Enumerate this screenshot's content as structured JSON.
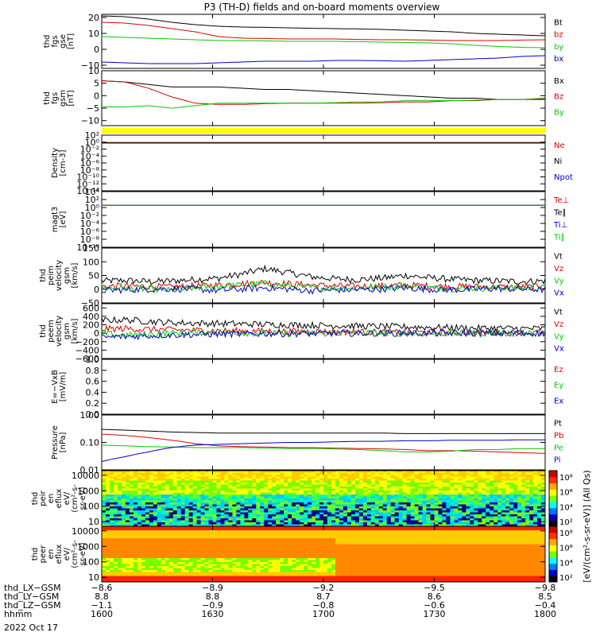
{
  "title": "P3 (TH-D) fields and on-board moments overview",
  "date_label": "2022 Oct 17",
  "colors": {
    "black": "#000000",
    "red": "#dd0000",
    "green": "#00cc00",
    "blue": "#0000cc",
    "yellow": "#ffff00"
  },
  "chart_data": [
    {
      "type": "line",
      "ylabel": [
        "thd",
        "fgs",
        "gse",
        "[nT]"
      ],
      "ylim": [
        -12,
        22
      ],
      "ticks": [
        "20",
        "10",
        "0",
        "−10"
      ],
      "tick_values": [
        20,
        10,
        0,
        -10
      ],
      "series": [
        {
          "name": "Bt",
          "color": "#000000",
          "values": [
            21,
            20.5,
            19,
            17,
            15.5,
            14.5,
            14,
            13.8,
            13.5,
            13.2,
            13,
            12.8,
            12.5,
            12,
            11.5,
            11,
            10,
            9.5,
            9,
            8.5
          ]
        },
        {
          "name": "bz",
          "color": "#dd0000",
          "values": [
            17,
            16.5,
            15,
            13,
            11,
            8,
            7,
            6.8,
            6.5,
            6.5,
            6.5,
            6.2,
            6,
            6,
            5.8,
            5.5,
            5.5,
            5.5,
            5.8,
            6
          ]
        },
        {
          "name": "by",
          "color": "#00cc00",
          "values": [
            8,
            7.5,
            7,
            6.5,
            6,
            5.5,
            5.5,
            5.3,
            5,
            5,
            5,
            4.8,
            4.5,
            4.3,
            4,
            3.5,
            2.5,
            1.8,
            1.2,
            1
          ]
        },
        {
          "name": "bx",
          "color": "#0000cc",
          "values": [
            -8,
            -8.5,
            -9,
            -9,
            -9,
            -8.5,
            -8,
            -7.5,
            -7.5,
            -7.5,
            -7,
            -7,
            -7.2,
            -7.5,
            -7,
            -6.5,
            -6,
            -5.5,
            -4.5,
            -4
          ]
        }
      ]
    },
    {
      "type": "line",
      "ylabel": [
        "thd",
        "fgs",
        "gsm",
        "[nT]"
      ],
      "ylim": [
        -12,
        10
      ],
      "ticks": [
        "10",
        "5",
        "0",
        "−5",
        "−10"
      ],
      "tick_values": [
        10,
        5,
        0,
        -5,
        -10
      ],
      "series": [
        {
          "name": "Bx",
          "color": "#000000",
          "values": [
            6,
            5.5,
            4.5,
            3.5,
            3.5,
            3.5,
            3,
            2.5,
            2.5,
            2,
            1.5,
            1,
            0.5,
            0,
            -0.5,
            -1,
            -1,
            -1.5,
            -1.5,
            -1.5
          ]
        },
        {
          "name": "Bz",
          "color": "#dd0000",
          "values": [
            6,
            5.5,
            3,
            -0.5,
            -3,
            -3.5,
            -3.5,
            -3.2,
            -3,
            -3,
            -3,
            -3,
            -2.8,
            -2.5,
            -2.5,
            -2,
            -2,
            -1.5,
            -1.5,
            -1
          ]
        },
        {
          "name": "By",
          "color": "#00cc00",
          "values": [
            -4.5,
            -4.5,
            -4,
            -5,
            -4,
            -3,
            -3,
            -3,
            -3,
            -3,
            -2.8,
            -2.5,
            -2.5,
            -2,
            -2,
            -2,
            -1.8,
            -1.5,
            -1.5,
            -1.2
          ]
        }
      ]
    },
    {
      "type": "bar",
      "ylabel": [],
      "ticks": [],
      "legend": []
    },
    {
      "type": "line",
      "ylabel": [
        "Density",
        "[cm-3]"
      ],
      "scale": "log",
      "ylim": [
        1e-14,
        100.0
      ],
      "ticks": [
        "10²",
        "10⁰",
        "10⁻²",
        "10⁻⁴",
        "10⁻⁶",
        "10⁻⁸",
        "10⁻¹⁰",
        "10⁻¹²",
        "10⁻¹⁴"
      ],
      "tick_values": [
        2,
        0,
        -2,
        -4,
        -6,
        -8,
        -10,
        -12,
        -14
      ],
      "series": [
        {
          "name": "Ne",
          "color": "#dd0000",
          "values": [
            0.5,
            0.5,
            0.5,
            0.5,
            0.5,
            0.5,
            0.5,
            0.5,
            0.5,
            0.5
          ]
        },
        {
          "name": "Ni",
          "color": "#000000",
          "values": [
            0.8,
            0.8,
            0.8,
            0.8,
            0.8,
            0.8,
            0.8,
            0.8,
            0.8,
            0.8
          ]
        },
        {
          "name": "Npot",
          "color": "#0000cc",
          "values": []
        }
      ]
    },
    {
      "type": "line",
      "ylabel": [
        "magt3",
        "[eV]"
      ],
      "scale": "log",
      "ylim": [
        1e-10,
        10000.0
      ],
      "ticks": [
        "10⁴",
        "10²",
        "10⁰",
        "10⁻²",
        "10⁻⁴",
        "10⁻⁶",
        "10⁻⁸",
        "10⁻¹⁰"
      ],
      "tick_values": [
        4,
        2,
        0,
        -2,
        -4,
        -6,
        -8,
        -10
      ],
      "series": [
        {
          "name": "Te⊥",
          "color": "#dd0000",
          "values": [
            3.5,
            3.5,
            3.5,
            3.5,
            3.5,
            3.5,
            3.5,
            3.5,
            3.5,
            3.5
          ]
        },
        {
          "name": "Te∥",
          "color": "#000000",
          "values": [
            3.6,
            3.6,
            3.6,
            3.6,
            3.6,
            3.6,
            3.6,
            3.6,
            3.6,
            3.6
          ]
        },
        {
          "name": "Ti⊥",
          "color": "#0000cc",
          "values": [
            3.7,
            3.7,
            3.7,
            3.7,
            3.7,
            3.7,
            3.7,
            3.7,
            3.7,
            3.7
          ]
        },
        {
          "name": "Ti∥",
          "color": "#00cc00",
          "values": [
            3.4,
            3.4,
            3.4,
            3.4,
            3.4,
            3.4,
            3.4,
            3.4,
            3.4,
            3.4
          ]
        }
      ]
    },
    {
      "type": "line",
      "ylabel": [
        "thd",
        "peim",
        "velocity",
        "gsm",
        "[km/s]"
      ],
      "ylim": [
        -50,
        150
      ],
      "ticks": [
        "150",
        "100",
        "50",
        "0",
        "−50"
      ],
      "tick_values": [
        150,
        100,
        50,
        0,
        -50
      ],
      "series": [
        {
          "name": "Vt",
          "color": "#000000",
          "values": [
            30,
            32,
            28,
            30,
            35,
            40,
            55,
            75,
            60,
            45,
            38,
            35,
            40,
            50,
            42,
            36,
            32,
            30,
            28,
            30
          ]
        },
        {
          "name": "Vz",
          "color": "#dd0000",
          "values": [
            10,
            12,
            10,
            8,
            12,
            15,
            20,
            25,
            20,
            15,
            12,
            10,
            12,
            15,
            12,
            10,
            10,
            8,
            8,
            10
          ]
        },
        {
          "name": "Vy",
          "color": "#00cc00",
          "values": [
            5,
            3,
            0,
            -5,
            5,
            10,
            15,
            20,
            12,
            5,
            3,
            5,
            8,
            10,
            5,
            2,
            3,
            5,
            5,
            5
          ]
        },
        {
          "name": "Vx",
          "color": "#0000cc",
          "values": [
            -5,
            -2,
            0,
            2,
            0,
            -5,
            0,
            5,
            0,
            -5,
            -3,
            -2,
            0,
            5,
            0,
            -2,
            0,
            2,
            0,
            -2
          ]
        }
      ]
    },
    {
      "type": "line",
      "ylabel": [
        "thd",
        "peem",
        "velocity",
        "gsm",
        "[km/s]"
      ],
      "ylim": [
        -600,
        700
      ],
      "ticks": [
        "600",
        "400",
        "200",
        "0",
        "−200",
        "−400",
        "−600"
      ],
      "tick_values": [
        600,
        400,
        200,
        0,
        -200,
        -400,
        -600
      ],
      "series": [
        {
          "name": "Vt",
          "color": "#000000",
          "values": [
            300,
            320,
            280,
            250,
            240,
            230,
            220,
            210,
            200,
            190,
            180,
            170,
            160,
            150,
            140,
            130,
            120,
            120,
            110,
            110
          ]
        },
        {
          "name": "Vz",
          "color": "#dd0000",
          "values": [
            100,
            110,
            90,
            80,
            70,
            60,
            50,
            50,
            40,
            40,
            30,
            30,
            20,
            20,
            20,
            10,
            10,
            10,
            10,
            10
          ]
        },
        {
          "name": "Vy",
          "color": "#00cc00",
          "values": [
            0,
            -50,
            -30,
            0,
            10,
            20,
            10,
            0,
            -10,
            0,
            0,
            10,
            0,
            0,
            -10,
            0,
            0,
            0,
            0,
            0
          ]
        },
        {
          "name": "Vx",
          "color": "#0000cc",
          "values": [
            -100,
            -80,
            -60,
            -40,
            -30,
            -20,
            -20,
            -10,
            -10,
            -10,
            0,
            0,
            0,
            0,
            0,
            0,
            0,
            0,
            0,
            0
          ]
        }
      ]
    },
    {
      "type": "line",
      "ylabel": [
        "E=−VxB",
        "[mV/m]"
      ],
      "ylim": [
        0,
        1
      ],
      "ticks": [
        "1.0",
        "0.8",
        "0.6",
        "0.4",
        "0.2",
        "0.0"
      ],
      "tick_values": [
        1,
        0.8,
        0.6,
        0.4,
        0.2,
        0
      ],
      "series": [
        {
          "name": "Ez",
          "color": "#dd0000",
          "values": []
        },
        {
          "name": "Ey",
          "color": "#00cc00",
          "values": []
        },
        {
          "name": "Ex",
          "color": "#0000cc",
          "values": []
        }
      ]
    },
    {
      "type": "line",
      "ylabel": [
        "Pressure",
        "[nPa]"
      ],
      "scale": "log",
      "ylim": [
        0.01,
        1
      ],
      "ticks": [
        "1.00",
        "0.10",
        "0.01"
      ],
      "tick_values": [
        0,
        -1,
        -2
      ],
      "series": [
        {
          "name": "Pt",
          "color": "#000000",
          "values": [
            0.3,
            0.28,
            0.26,
            0.24,
            0.23,
            0.22,
            0.22,
            0.22,
            0.22,
            0.22,
            0.22,
            0.22,
            0.22,
            0.21,
            0.21,
            0.21,
            0.21,
            0.21,
            0.21,
            0.21
          ]
        },
        {
          "name": "Pb",
          "color": "#dd0000",
          "values": [
            0.2,
            0.18,
            0.15,
            0.12,
            0.09,
            0.075,
            0.07,
            0.068,
            0.065,
            0.065,
            0.062,
            0.06,
            0.058,
            0.055,
            0.05,
            0.05,
            0.048,
            0.045,
            0.042,
            0.04
          ]
        },
        {
          "name": "Pe",
          "color": "#00cc00",
          "values": [
            0.08,
            0.075,
            0.07,
            0.068,
            0.065,
            0.065,
            0.065,
            0.062,
            0.06,
            0.06,
            0.058,
            0.055,
            0.05,
            0.045,
            0.045,
            0.048,
            0.055,
            0.055,
            0.06,
            0.06
          ]
        },
        {
          "name": "Pi",
          "color": "#0000cc",
          "values": [
            0.02,
            0.03,
            0.045,
            0.065,
            0.08,
            0.085,
            0.09,
            0.095,
            0.1,
            0.1,
            0.105,
            0.11,
            0.11,
            0.115,
            0.115,
            0.12,
            0.12,
            0.12,
            0.125,
            0.125
          ]
        }
      ]
    },
    {
      "type": "heatmap",
      "ylabel": [
        "thd",
        "peir",
        "en",
        "eflux",
        "eV/",
        "(cm²-s-",
        "sr-eV)"
      ],
      "scale": "log",
      "ylim": [
        5,
        20000
      ],
      "ticks": [
        "10000",
        "1000",
        "100",
        "10"
      ],
      "tick_values": [
        4,
        3,
        2,
        1
      ]
    },
    {
      "type": "heatmap",
      "ylabel": [
        "thd",
        "peer",
        "en",
        "eflux",
        "eV/",
        "(cm²-s-",
        "sr-eV)"
      ],
      "scale": "log",
      "ylim": [
        5,
        20000
      ],
      "ticks": [
        "10000",
        "1000",
        "100",
        "10"
      ],
      "tick_values": [
        4,
        3,
        2,
        1
      ]
    }
  ],
  "colorbar": {
    "label": "[eV/(cm²-s-sr-eV)] (All Qs)",
    "upper_ticks": [
      "10⁸",
      "10⁶",
      "10⁴",
      "10²"
    ],
    "lower_ticks": [
      "10⁸",
      "10⁶",
      "10⁴",
      "10²"
    ]
  },
  "xaxis": {
    "labels": [
      "thd_LX−GSM",
      "thd_LY−GSM",
      "thd_LZ−GSM",
      "hhmm"
    ],
    "columns": [
      {
        "values": [
          "−8.6",
          "8.8",
          "−1.1",
          "1600"
        ]
      },
      {
        "values": [
          "−8.9",
          "8.8",
          "−0.9",
          "1630"
        ]
      },
      {
        "values": [
          "−9.2",
          "8.7",
          "−0.8",
          "1700"
        ]
      },
      {
        "values": [
          "−9.5",
          "8.6",
          "−0.6",
          "1730"
        ]
      },
      {
        "values": [
          "−9.8",
          "8.5",
          "−0.4",
          "1800"
        ]
      }
    ]
  }
}
